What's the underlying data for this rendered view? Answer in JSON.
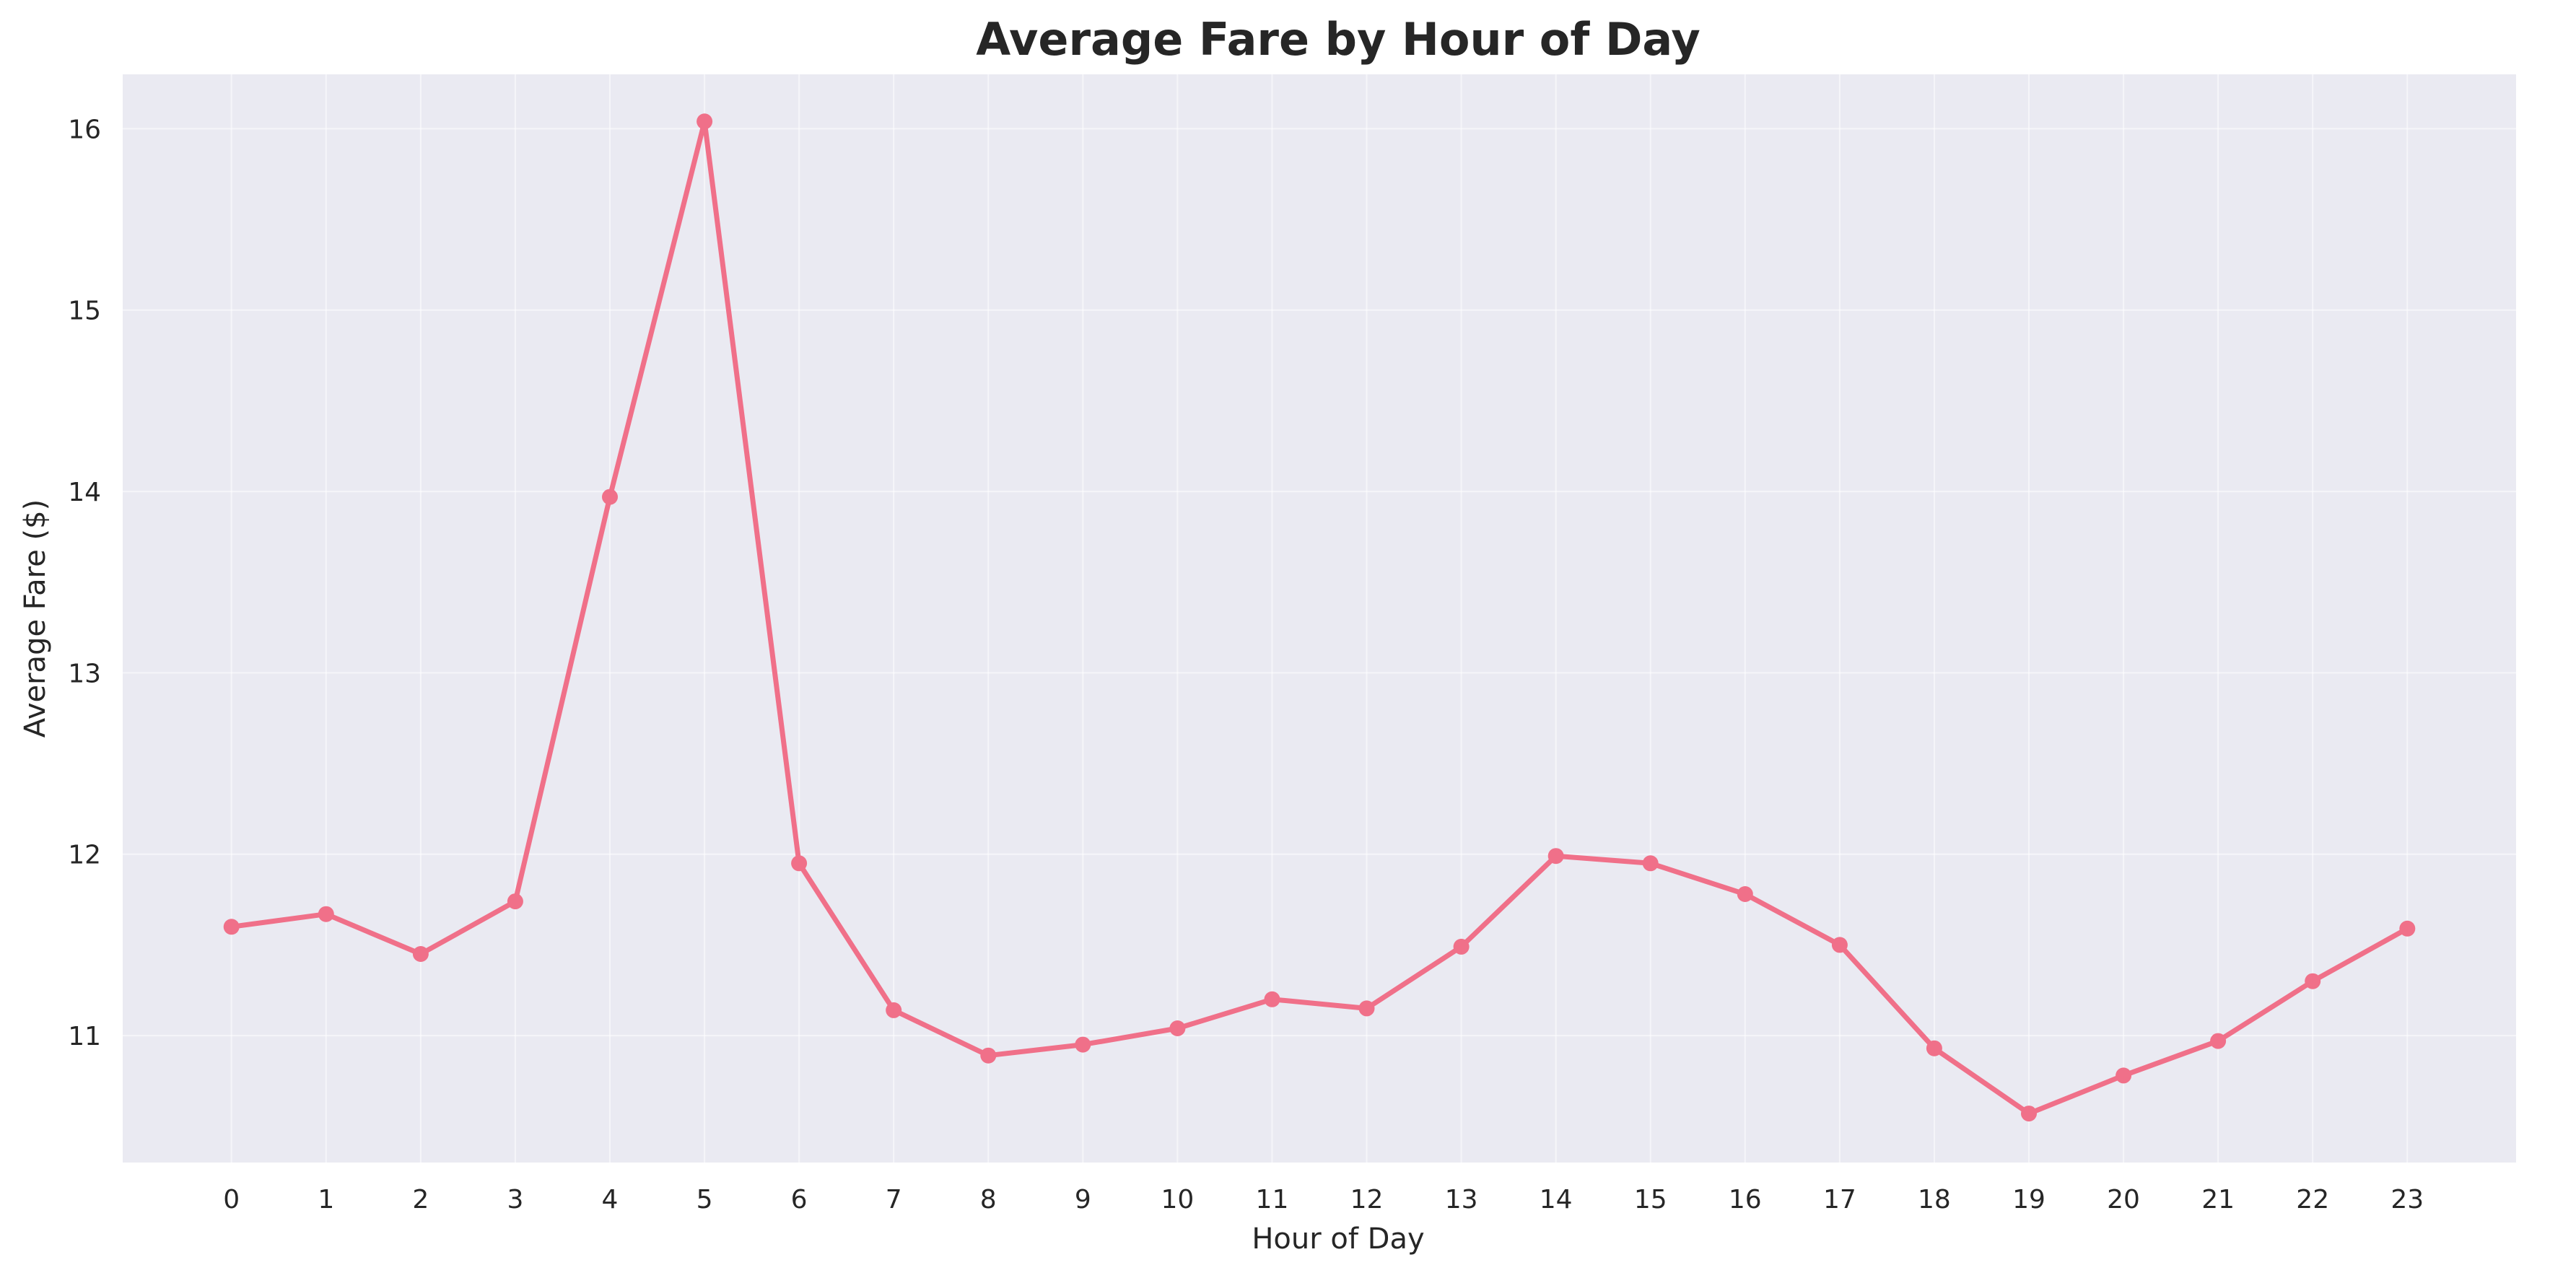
{
  "chart_data": {
    "type": "line",
    "title": "Average Fare by Hour of Day",
    "xlabel": "Hour of Day",
    "ylabel": "Average Fare ($)",
    "x": [
      0,
      1,
      2,
      3,
      4,
      5,
      6,
      7,
      8,
      9,
      10,
      11,
      12,
      13,
      14,
      15,
      16,
      17,
      18,
      19,
      20,
      21,
      22,
      23
    ],
    "xticks": [
      "0",
      "1",
      "2",
      "3",
      "4",
      "5",
      "6",
      "7",
      "8",
      "9",
      "10",
      "11",
      "12",
      "13",
      "14",
      "15",
      "16",
      "17",
      "18",
      "19",
      "20",
      "21",
      "22",
      "23"
    ],
    "yticks": [
      "11",
      "12",
      "13",
      "14",
      "15",
      "16"
    ],
    "ytick_values": [
      11,
      12,
      13,
      14,
      15,
      16
    ],
    "xlim": [
      -1.15,
      24.15
    ],
    "ylim": [
      10.3,
      16.3
    ],
    "grid": true,
    "series": [
      {
        "values": [
          11.6,
          11.67,
          11.45,
          11.74,
          13.97,
          16.04,
          11.95,
          11.14,
          10.89,
          10.95,
          11.04,
          11.2,
          11.15,
          11.49,
          11.99,
          11.95,
          11.78,
          11.5,
          10.93,
          10.57,
          10.78,
          10.97,
          11.3,
          11.59
        ],
        "color": "#F07089",
        "marker": "circle"
      }
    ]
  },
  "colors": {
    "plot_background": "#EAEAF2",
    "grid": "#FFFFFF",
    "text": "#262626",
    "series": "#F07089"
  }
}
